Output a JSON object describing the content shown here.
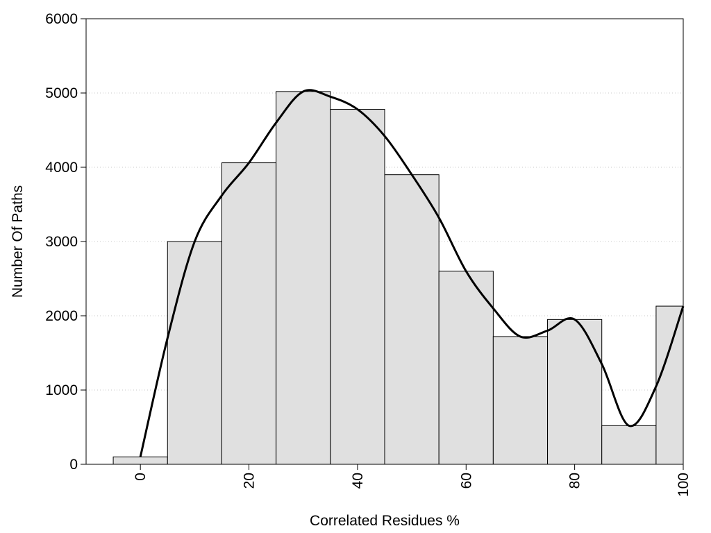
{
  "chart_data": {
    "type": "bar",
    "title": "",
    "xlabel": "Correlated Residues %",
    "ylabel": "Number Of Paths",
    "xlim": [
      -10,
      100
    ],
    "ylim": [
      0,
      6000
    ],
    "x_ticks": [
      0,
      20,
      40,
      60,
      80,
      100
    ],
    "y_ticks": [
      0,
      1000,
      2000,
      3000,
      4000,
      5000,
      6000
    ],
    "grid": true,
    "bin_width": 10,
    "bins": [
      {
        "center": 0,
        "value": 100
      },
      {
        "center": 10,
        "value": 3000
      },
      {
        "center": 20,
        "value": 4060
      },
      {
        "center": 30,
        "value": 5020
      },
      {
        "center": 40,
        "value": 4780
      },
      {
        "center": 50,
        "value": 3900
      },
      {
        "center": 60,
        "value": 2600
      },
      {
        "center": 70,
        "value": 1720
      },
      {
        "center": 80,
        "value": 1950
      },
      {
        "center": 90,
        "value": 520
      },
      {
        "center": 100,
        "value": 2130
      }
    ],
    "curve": [
      [
        0,
        100
      ],
      [
        5,
        1700
      ],
      [
        10,
        3000
      ],
      [
        15,
        3620
      ],
      [
        20,
        4060
      ],
      [
        25,
        4600
      ],
      [
        30,
        5020
      ],
      [
        35,
        4950
      ],
      [
        40,
        4780
      ],
      [
        45,
        4420
      ],
      [
        50,
        3900
      ],
      [
        55,
        3320
      ],
      [
        60,
        2600
      ],
      [
        65,
        2100
      ],
      [
        70,
        1720
      ],
      [
        75,
        1800
      ],
      [
        80,
        1950
      ],
      [
        85,
        1350
      ],
      [
        90,
        520
      ],
      [
        95,
        1050
      ],
      [
        100,
        2130
      ]
    ],
    "colors": {
      "bar_fill": "#e0e0e0",
      "bar_stroke": "#000000",
      "curve": "#000000"
    }
  }
}
